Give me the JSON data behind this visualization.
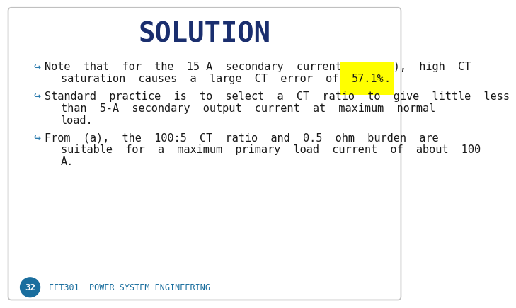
{
  "title": "SOLUTION",
  "title_color": "#1a2e6e",
  "title_fontsize": 28,
  "title_fontweight": "bold",
  "background_color": "#ffffff",
  "border_color": "#c0c0c0",
  "bullet_color": "#2a7aad",
  "text_color": "#1a1a1a",
  "highlight_color": "#ffff00",
  "text_fontsize": 11.0,
  "bullet_fontsize": 12.0,
  "footer_text": "EET301  POWER SYSTEM ENGINEERING",
  "footer_color": "#1a6e9e",
  "footer_badge_color": "#1a6e9e",
  "footer_badge_text": "32",
  "footer_badge_text_color": "#ffffff",
  "footer_fontsize": 8.5,
  "font_family": "monospace",
  "bullet_char": "↪",
  "bullet_points": [
    {
      "first_line": "Note  that  for  the  15 A  secondary  current  in  (c),  high  CT",
      "cont_lines": [
        "saturation  causes  a  large  CT  error  of  57.1%."
      ],
      "highlight_in_cont": 0,
      "highlight_before": "saturation  causes  a  large  CT  error  of  ",
      "highlight_text": "57.1%",
      "highlight_after": "."
    },
    {
      "first_line": "Standard  practice  is  to  select  a  CT  ratio  to  give  little  less",
      "cont_lines": [
        "than  5-A  secondary  output  current  at  maximum  normal",
        "load."
      ],
      "highlight_in_cont": -1,
      "highlight_before": "",
      "highlight_text": "",
      "highlight_after": ""
    },
    {
      "first_line": "From  (a),  the  100:5  CT  ratio  and  0.5  ohm  burden  are",
      "cont_lines": [
        "suitable  for  a  maximum  primary  load  current  of  about  100",
        "A."
      ],
      "highlight_in_cont": -1,
      "highlight_before": "",
      "highlight_text": "",
      "highlight_after": ""
    }
  ]
}
